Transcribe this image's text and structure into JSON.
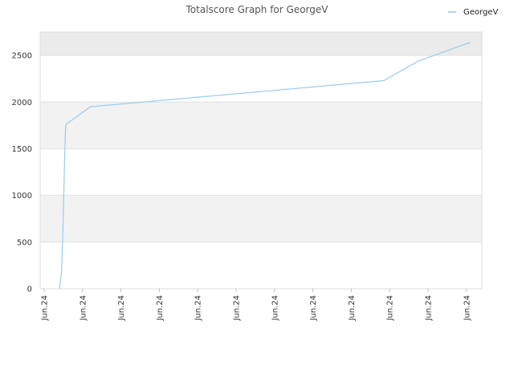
{
  "chart_data": {
    "type": "line",
    "title": "Totalscore Graph for GeorgeV",
    "xlabel": "",
    "ylabel": "",
    "ylim": [
      0,
      2750
    ],
    "yticks": [
      0,
      500,
      1000,
      1500,
      2000,
      2500
    ],
    "xtick_labels": [
      "Jun.24",
      "Jun.24",
      "Jun.24",
      "Jun.24",
      "Jun.24",
      "Jun.24",
      "Jun.24",
      "Jun.24",
      "Jun.24",
      "Jun.24",
      "Jun.24",
      "Jun.24"
    ],
    "legend": {
      "position": "top-right"
    },
    "grid": "horizontal alternating bands",
    "colors": {
      "line": "#99ccee",
      "band": "#f2f2f2",
      "top_band": "#ebebeb",
      "grid": "#e0e0e0",
      "axis": "#dddddd"
    },
    "series": [
      {
        "name": "GeorgeV",
        "x": [
          0.4,
          0.45,
          0.48,
          0.5,
          0.52,
          0.54,
          0.56,
          0.6,
          1.2,
          8.85,
          9.75,
          11.1
        ],
        "y": [
          0,
          170,
          500,
          830,
          1170,
          1500,
          1750,
          1770,
          1950,
          2230,
          2440,
          2640
        ]
      }
    ]
  }
}
